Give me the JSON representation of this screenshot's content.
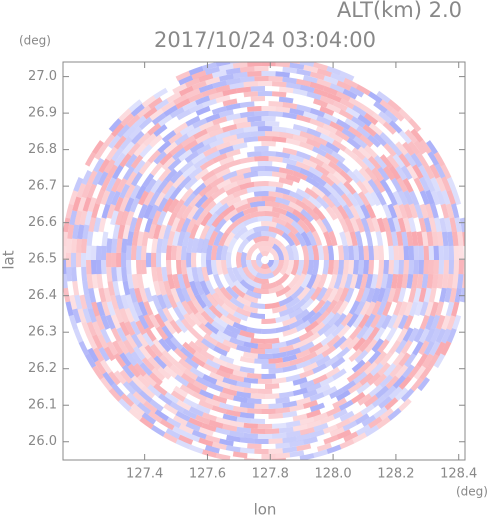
{
  "chart_data": {
    "type": "ppi",
    "title": "2017/10/24 03:04:00",
    "subtitle": "ALT(km) 2.0",
    "x_label": "lon",
    "y_label": "lat",
    "x_unit": "(deg)",
    "y_unit": "(deg)",
    "xlim": [
      127.14,
      128.42
    ],
    "ylim": [
      25.95,
      27.04
    ],
    "xticks": [
      127.4,
      127.6,
      127.8,
      {
        "value": 128,
        "label": "128.0"
      },
      128.2,
      128.4
    ],
    "yticks": [
      {
        "value": 26,
        "label": "26.0"
      },
      26.1,
      26.2,
      26.3,
      26.4,
      26.5,
      26.6,
      26.7,
      26.8,
      26.9,
      {
        "value": 27,
        "label": "27.0"
      }
    ]
  }
}
